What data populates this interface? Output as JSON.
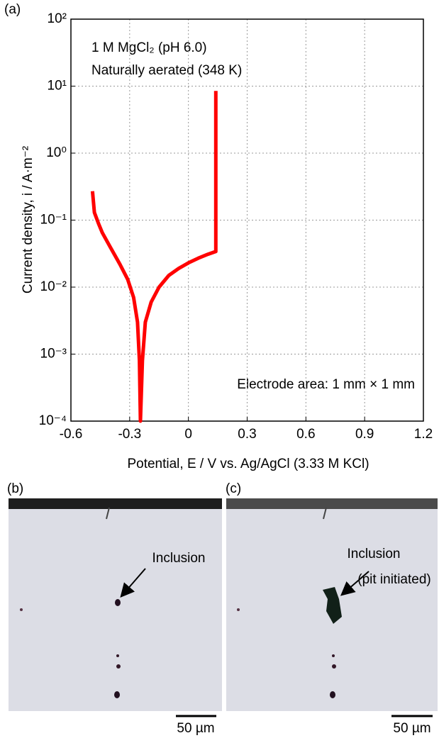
{
  "chart_data": {
    "type": "line",
    "panel_label": "(a)",
    "xlabel": "Potential, E / V vs. Ag/AgCl (3.33 M KCl)",
    "ylabel": "Current density, i / A·m⁻²",
    "annotations": [
      "1 M MgCl₂ (pH 6.0)",
      "Naturally aerated (348 K)",
      "Electrode area: 1 mm × 1 mm"
    ],
    "x": [
      -0.49,
      -0.48,
      -0.46,
      -0.44,
      -0.4,
      -0.35,
      -0.31,
      -0.28,
      -0.26,
      -0.25,
      -0.245,
      -0.235,
      -0.22,
      -0.19,
      -0.15,
      -0.1,
      -0.05,
      0,
      0.05,
      0.1,
      0.14,
      0.14,
      0.14
    ],
    "series": [
      {
        "color": "#ff0000",
        "values": [
          0.27,
          0.13,
          0.09,
          0.065,
          0.04,
          0.022,
          0.013,
          0.007,
          0.003,
          0.0008,
          0.0001,
          0.0008,
          0.003,
          0.006,
          0.01,
          0.015,
          0.019,
          0.023,
          0.027,
          0.031,
          0.034,
          0.5,
          8.5
        ]
      }
    ],
    "xlim": [
      -0.6,
      1.2
    ],
    "xticks": [
      -0.6,
      -0.3,
      0,
      0.3,
      0.6,
      0.9,
      1.2
    ],
    "ylim": [
      0.0001,
      100
    ],
    "yscale": "log",
    "yticks": [
      {
        "value": 0.0001,
        "label": "10⁻⁴"
      },
      {
        "value": 0.001,
        "label": "10⁻³"
      },
      {
        "value": 0.01,
        "label": "10⁻²"
      },
      {
        "value": 0.1,
        "label": "10⁻¹"
      },
      {
        "value": 1,
        "label": "10⁰"
      },
      {
        "value": 10,
        "label": "10¹"
      },
      {
        "value": 100,
        "label": "10²"
      }
    ],
    "grid": true
  },
  "panels": [
    {
      "label": "(b)",
      "annotation": [
        "Inclusion"
      ],
      "scale_bar": "50 µm"
    },
    {
      "label": "(c)",
      "annotation": [
        "Inclusion",
        "(pit initiated)"
      ],
      "scale_bar": "50 µm"
    }
  ]
}
